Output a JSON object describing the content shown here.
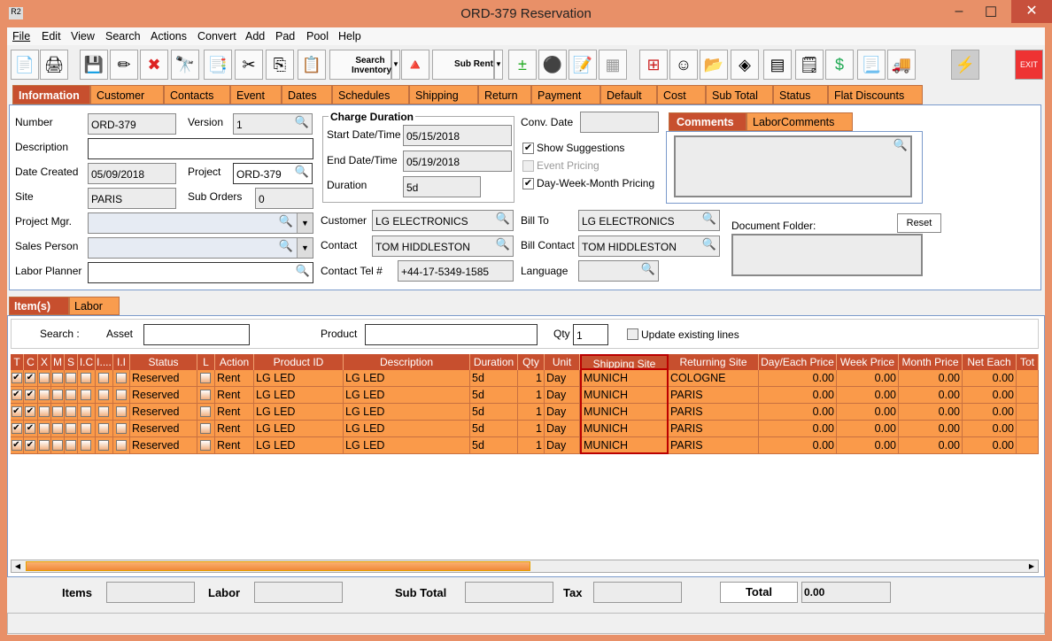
{
  "window": {
    "title": "ORD-379 Reservation",
    "app_icon": "R2"
  },
  "menu": [
    "File",
    "Edit",
    "View",
    "Search",
    "Actions",
    "Convert",
    "Add",
    "Pad",
    "Pool",
    "Help"
  ],
  "toolbar": {
    "search_inventory": "Search Inventory",
    "sub_rent": "Sub Rent",
    "exit": "EXIT"
  },
  "info_tabs": [
    "Information",
    "Customer",
    "Contacts",
    "Event",
    "Dates",
    "Schedules",
    "Shipping",
    "Return",
    "Payment",
    "Default",
    "Cost",
    "Sub Total",
    "Status",
    "Flat Discounts"
  ],
  "form": {
    "number_label": "Number",
    "number": "ORD-379",
    "version_label": "Version",
    "version": "1",
    "description_label": "Description",
    "description": "",
    "date_created_label": "Date Created",
    "date_created": "05/09/2018",
    "project_label": "Project",
    "project": "ORD-379",
    "site_label": "Site",
    "site": "PARIS",
    "sub_orders_label": "Sub Orders",
    "sub_orders": "0",
    "project_mgr_label": "Project Mgr.",
    "sales_person_label": "Sales Person",
    "labor_planner_label": "Labor Planner",
    "charge_duration_title": "Charge Duration",
    "start_label": "Start Date/Time",
    "start": "05/15/2018",
    "end_label": "End Date/Time",
    "end": "05/19/2018",
    "duration_label": "Duration",
    "duration": "5d",
    "conv_date_label": "Conv. Date",
    "show_suggestions": "Show Suggestions",
    "event_pricing": "Event Pricing",
    "dwm_pricing": "Day-Week-Month Pricing",
    "customer_label": "Customer",
    "customer": "LG ELECTRONICS",
    "contact_label": "Contact",
    "contact": "TOM HIDDLESTON",
    "contact_tel_label": "Contact Tel #",
    "contact_tel": "+44-17-5349-1585",
    "bill_to_label": "Bill To",
    "bill_to": "LG ELECTRONICS",
    "bill_contact_label": "Bill Contact",
    "bill_contact": "TOM HIDDLESTON",
    "language_label": "Language",
    "comments_tabs": [
      "Comments",
      "LaborComments"
    ],
    "document_folder_label": "Document Folder:",
    "reset": "Reset"
  },
  "item_tabs": [
    "Item(s)",
    "Labor"
  ],
  "search": {
    "search_label": "Search :",
    "asset_label": "Asset",
    "product_label": "Product",
    "qty_label": "Qty",
    "qty": "1",
    "update_existing": "Update existing lines"
  },
  "columns": [
    "T",
    "C",
    "X",
    "M",
    "S",
    "I.C",
    "I....",
    "I.I",
    "Status",
    "L",
    "Action",
    "Product ID",
    "Description",
    "Duration",
    "Qty",
    "Unit",
    "Shipping Site",
    "Returning Site",
    "Day/Each Price",
    "Week Price",
    "Month Price",
    "Net Each",
    "Tot"
  ],
  "rows": [
    {
      "status": "Reserved",
      "action": "Rent",
      "product_id": "LG LED",
      "description": "LG LED",
      "duration": "5d",
      "qty": "1",
      "unit": "Day",
      "shipping_site": "MUNICH",
      "returning_site": "COLOGNE",
      "day": "0.00",
      "week": "0.00",
      "month": "0.00",
      "net": "0.00"
    },
    {
      "status": "Reserved",
      "action": "Rent",
      "product_id": "LG LED",
      "description": "LG LED",
      "duration": "5d",
      "qty": "1",
      "unit": "Day",
      "shipping_site": "MUNICH",
      "returning_site": "PARIS",
      "day": "0.00",
      "week": "0.00",
      "month": "0.00",
      "net": "0.00"
    },
    {
      "status": "Reserved",
      "action": "Rent",
      "product_id": "LG LED",
      "description": "LG LED",
      "duration": "5d",
      "qty": "1",
      "unit": "Day",
      "shipping_site": "MUNICH",
      "returning_site": "PARIS",
      "day": "0.00",
      "week": "0.00",
      "month": "0.00",
      "net": "0.00"
    },
    {
      "status": "Reserved",
      "action": "Rent",
      "product_id": "LG LED",
      "description": "LG LED",
      "duration": "5d",
      "qty": "1",
      "unit": "Day",
      "shipping_site": "MUNICH",
      "returning_site": "PARIS",
      "day": "0.00",
      "week": "0.00",
      "month": "0.00",
      "net": "0.00"
    },
    {
      "status": "Reserved",
      "action": "Rent",
      "product_id": "LG LED",
      "description": "LG LED",
      "duration": "5d",
      "qty": "1",
      "unit": "Day",
      "shipping_site": "MUNICH",
      "returning_site": "PARIS",
      "day": "0.00",
      "week": "0.00",
      "month": "0.00",
      "net": "0.00"
    }
  ],
  "totals": {
    "items_label": "Items",
    "labor_label": "Labor",
    "sub_total_label": "Sub Total",
    "tax_label": "Tax",
    "total_label": "Total",
    "total": "0.00"
  },
  "colors": {
    "accent": "#c74f2e",
    "tab": "#f99c4e",
    "row": "#fa9a4a",
    "frame": "#e89068"
  }
}
